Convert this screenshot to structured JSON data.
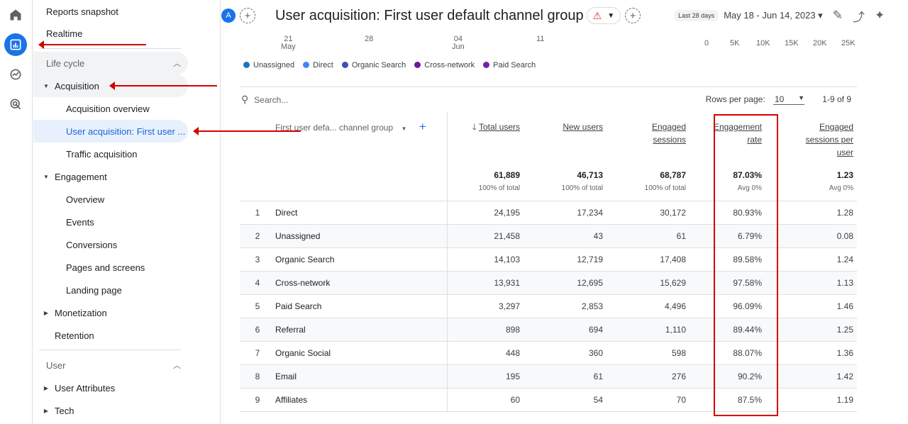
{
  "rail": {
    "items": [
      "home-icon",
      "reports-icon",
      "explore-icon",
      "advertising-icon"
    ]
  },
  "sidebar": {
    "top": [
      "Reports snapshot",
      "Realtime"
    ],
    "lifecycle": {
      "label": "Life cycle",
      "acquisition": "Acquisition",
      "acquisition_items": [
        "Acquisition overview",
        "User acquisition: First user ...",
        "Traffic acquisition"
      ],
      "engagement": "Engagement",
      "engagement_items": [
        "Overview",
        "Events",
        "Conversions",
        "Pages and screens",
        "Landing page"
      ],
      "monetization": "Monetization",
      "retention": "Retention"
    },
    "user": {
      "label": "User",
      "items": [
        "User Attributes",
        "Tech"
      ]
    }
  },
  "header": {
    "avatar": "A",
    "add": "+",
    "title": "User acquisition: First user default channel group",
    "last_chip": "Last 28 days",
    "date_range": "May 18 - Jun 14, 2023 ▾"
  },
  "axis": {
    "dates": [
      {
        "top": "21",
        "bottom": "May"
      },
      {
        "top": "28",
        "bottom": ""
      },
      {
        "top": "04",
        "bottom": "Jun"
      },
      {
        "top": "11",
        "bottom": ""
      }
    ],
    "values": [
      "0",
      "5K",
      "10K",
      "15K",
      "20K",
      "25K"
    ]
  },
  "legend": [
    {
      "label": "Unassigned",
      "color": "#1e73be"
    },
    {
      "label": "Direct",
      "color": "#4285f4"
    },
    {
      "label": "Organic Search",
      "color": "#3f51b5"
    },
    {
      "label": "Cross-network",
      "color": "#6a1b9a"
    },
    {
      "label": "Paid Search",
      "color": "#7b1fa2"
    }
  ],
  "table": {
    "search_placeholder": "Search...",
    "rows_per_page_label": "Rows per page:",
    "rows_per_page": "10",
    "pager": "1-9 of 9",
    "dimension_header": "First user defa... channel group",
    "columns": [
      {
        "label": "Total users",
        "sorted": true
      },
      {
        "label": "New users"
      },
      {
        "label": "Engaged sessions"
      },
      {
        "label": "Engagement rate"
      },
      {
        "label": "Engaged sessions per user"
      }
    ],
    "totals": [
      {
        "value": "61,889",
        "sub": "100% of total"
      },
      {
        "value": "46,713",
        "sub": "100% of total"
      },
      {
        "value": "68,787",
        "sub": "100% of total"
      },
      {
        "value": "87.03%",
        "sub": "Avg 0%"
      },
      {
        "value": "1.23",
        "sub": "Avg 0%"
      }
    ],
    "rows": [
      {
        "idx": "1",
        "name": "Direct",
        "cells": [
          "24,195",
          "17,234",
          "30,172",
          "80.93%",
          "1.28"
        ]
      },
      {
        "idx": "2",
        "name": "Unassigned",
        "cells": [
          "21,458",
          "43",
          "61",
          "6.79%",
          "0.08"
        ]
      },
      {
        "idx": "3",
        "name": "Organic Search",
        "cells": [
          "14,103",
          "12,719",
          "17,408",
          "89.58%",
          "1.24"
        ]
      },
      {
        "idx": "4",
        "name": "Cross-network",
        "cells": [
          "13,931",
          "12,695",
          "15,629",
          "97.58%",
          "1.13"
        ]
      },
      {
        "idx": "5",
        "name": "Paid Search",
        "cells": [
          "3,297",
          "2,853",
          "4,496",
          "96.09%",
          "1.46"
        ]
      },
      {
        "idx": "6",
        "name": "Referral",
        "cells": [
          "898",
          "694",
          "1,110",
          "89.44%",
          "1.25"
        ]
      },
      {
        "idx": "7",
        "name": "Organic Social",
        "cells": [
          "448",
          "360",
          "598",
          "88.07%",
          "1.36"
        ]
      },
      {
        "idx": "8",
        "name": "Email",
        "cells": [
          "195",
          "61",
          "276",
          "90.2%",
          "1.42"
        ]
      },
      {
        "idx": "9",
        "name": "Affiliates",
        "cells": [
          "60",
          "54",
          "70",
          "87.5%",
          "1.19"
        ]
      }
    ]
  }
}
